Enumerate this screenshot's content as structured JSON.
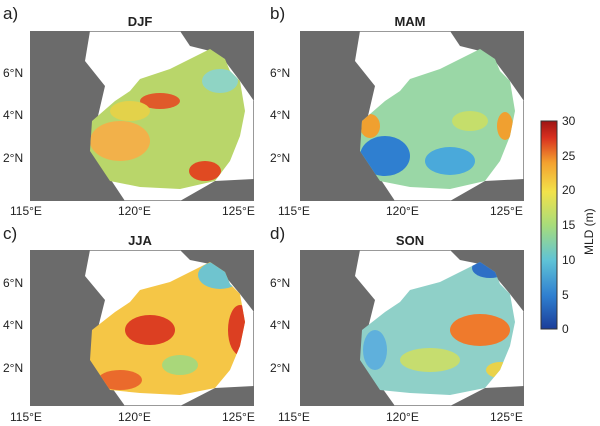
{
  "panels": [
    {
      "letter": "a)",
      "season": "DJF"
    },
    {
      "letter": "b)",
      "season": "MAM"
    },
    {
      "letter": "c)",
      "season": "JJA"
    },
    {
      "letter": "d)",
      "season": "SON"
    }
  ],
  "lat_ticks": [
    "6°N",
    "4°N",
    "2°N"
  ],
  "lon_ticks": [
    "115°E",
    "120°E",
    "125°E"
  ],
  "colorbar": {
    "label": "MLD (m)",
    "ticks": [
      "30",
      "25",
      "20",
      "15",
      "10",
      "5",
      "0"
    ],
    "colors": [
      "#1b3d99",
      "#2f7fd0",
      "#5fc3d6",
      "#a8dc7a",
      "#f2e24a",
      "#f4a12f",
      "#d8301f",
      "#9e1414"
    ]
  }
}
